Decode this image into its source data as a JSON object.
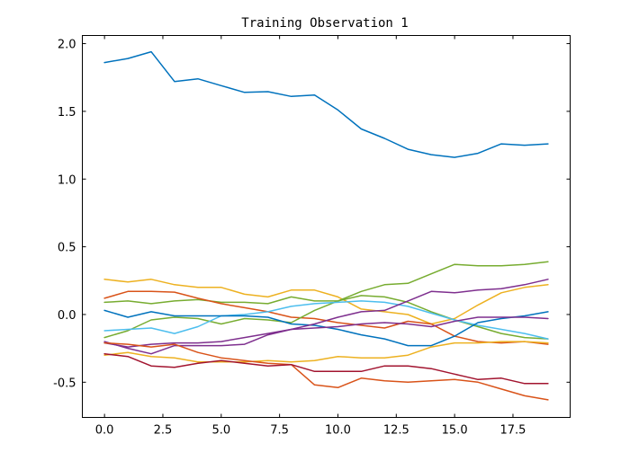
{
  "chart_data": {
    "type": "line",
    "title": "Training Observation 1",
    "xlabel": "",
    "ylabel": "",
    "xlim": [
      -0.95,
      19.95
    ],
    "ylim": [
      -0.76,
      2.06
    ],
    "grid": false,
    "xticks": [
      0,
      2.5,
      5,
      7.5,
      10,
      12.5,
      15,
      17.5
    ],
    "xtick_labels": [
      "0.0",
      "2.5",
      "5.0",
      "7.5",
      "10.0",
      "12.5",
      "15.0",
      "17.5"
    ],
    "yticks": [
      -0.5,
      0,
      0.5,
      1,
      1.5,
      2
    ],
    "ytick_labels": [
      "-0.5",
      "0.0",
      "0.5",
      "1.0",
      "1.5",
      "2.0"
    ],
    "x": [
      0,
      1,
      2,
      3,
      4,
      5,
      6,
      7,
      8,
      9,
      10,
      11,
      12,
      13,
      14,
      15,
      16,
      17,
      18,
      19
    ],
    "series": [
      {
        "color": "#0072BD",
        "values": [
          1.86,
          1.89,
          1.94,
          1.72,
          1.74,
          1.69,
          1.64,
          1.645,
          1.61,
          1.62,
          1.51,
          1.37,
          1.3,
          1.22,
          1.18,
          1.16,
          1.19,
          1.26,
          1.25,
          1.26
        ]
      },
      {
        "color": "#EDB120",
        "values": [
          0.26,
          0.24,
          0.26,
          0.22,
          0.2,
          0.2,
          0.15,
          0.13,
          0.18,
          0.18,
          0.13,
          0.04,
          0.02,
          0.0,
          -0.07,
          -0.03,
          0.07,
          0.16,
          0.2,
          0.22
        ]
      },
      {
        "color": "#77AC30",
        "values": [
          0.09,
          0.1,
          0.08,
          0.1,
          0.11,
          0.09,
          0.09,
          0.08,
          0.13,
          0.1,
          0.1,
          0.14,
          0.13,
          0.09,
          0.02,
          -0.04,
          -0.09,
          -0.14,
          -0.17,
          -0.18
        ]
      },
      {
        "color": "#D95319",
        "values": [
          0.12,
          0.17,
          0.17,
          0.165,
          0.12,
          0.08,
          0.05,
          0.02,
          -0.02,
          -0.03,
          -0.06,
          -0.08,
          -0.1,
          -0.05,
          -0.07,
          -0.16,
          -0.2,
          -0.21,
          -0.2,
          -0.22
        ]
      },
      {
        "color": "#77AC30",
        "values": [
          -0.17,
          -0.12,
          -0.04,
          -0.02,
          -0.03,
          -0.07,
          -0.03,
          -0.04,
          -0.06,
          0.03,
          0.1,
          0.17,
          0.22,
          0.23,
          0.3,
          0.37,
          0.36,
          0.36,
          0.37,
          0.39
        ]
      },
      {
        "color": "#4DBEEE",
        "values": [
          -0.12,
          -0.11,
          -0.1,
          -0.14,
          -0.09,
          -0.01,
          0.0,
          0.02,
          0.06,
          0.08,
          0.09,
          0.1,
          0.09,
          0.06,
          0.01,
          -0.04,
          -0.08,
          -0.11,
          -0.14,
          -0.18
        ]
      },
      {
        "color": "#0072BD",
        "values": [
          0.03,
          -0.02,
          0.02,
          -0.01,
          -0.01,
          -0.01,
          -0.01,
          -0.02,
          -0.07,
          -0.08,
          -0.11,
          -0.15,
          -0.18,
          -0.23,
          -0.23,
          -0.16,
          -0.06,
          -0.03,
          -0.01,
          0.02
        ]
      },
      {
        "color": "#7E2F8E",
        "values": [
          -0.21,
          -0.24,
          -0.22,
          -0.21,
          -0.21,
          -0.2,
          -0.17,
          -0.14,
          -0.11,
          -0.07,
          -0.02,
          0.02,
          0.03,
          0.1,
          0.17,
          0.16,
          0.18,
          0.19,
          0.22,
          0.26
        ]
      },
      {
        "color": "#7E2F8E",
        "values": [
          -0.2,
          -0.25,
          -0.29,
          -0.23,
          -0.23,
          -0.23,
          -0.22,
          -0.15,
          -0.11,
          -0.1,
          -0.09,
          -0.07,
          -0.06,
          -0.07,
          -0.09,
          -0.05,
          -0.02,
          -0.02,
          -0.02,
          -0.03
        ]
      },
      {
        "color": "#EDB120",
        "values": [
          -0.3,
          -0.28,
          -0.31,
          -0.32,
          -0.35,
          -0.35,
          -0.35,
          -0.34,
          -0.35,
          -0.34,
          -0.31,
          -0.32,
          -0.32,
          -0.3,
          -0.24,
          -0.21,
          -0.21,
          -0.2,
          -0.2,
          -0.21
        ]
      },
      {
        "color": "#D95319",
        "values": [
          -0.21,
          -0.22,
          -0.24,
          -0.22,
          -0.28,
          -0.32,
          -0.34,
          -0.36,
          -0.37,
          -0.52,
          -0.54,
          -0.47,
          -0.49,
          -0.5,
          -0.49,
          -0.48,
          -0.5,
          -0.55,
          -0.6,
          -0.63
        ]
      },
      {
        "color": "#A2142F",
        "values": [
          -0.29,
          -0.31,
          -0.38,
          -0.39,
          -0.36,
          -0.34,
          -0.36,
          -0.38,
          -0.37,
          -0.42,
          -0.42,
          -0.42,
          -0.38,
          -0.38,
          -0.4,
          -0.44,
          -0.48,
          -0.47,
          -0.51,
          -0.51
        ]
      }
    ]
  }
}
